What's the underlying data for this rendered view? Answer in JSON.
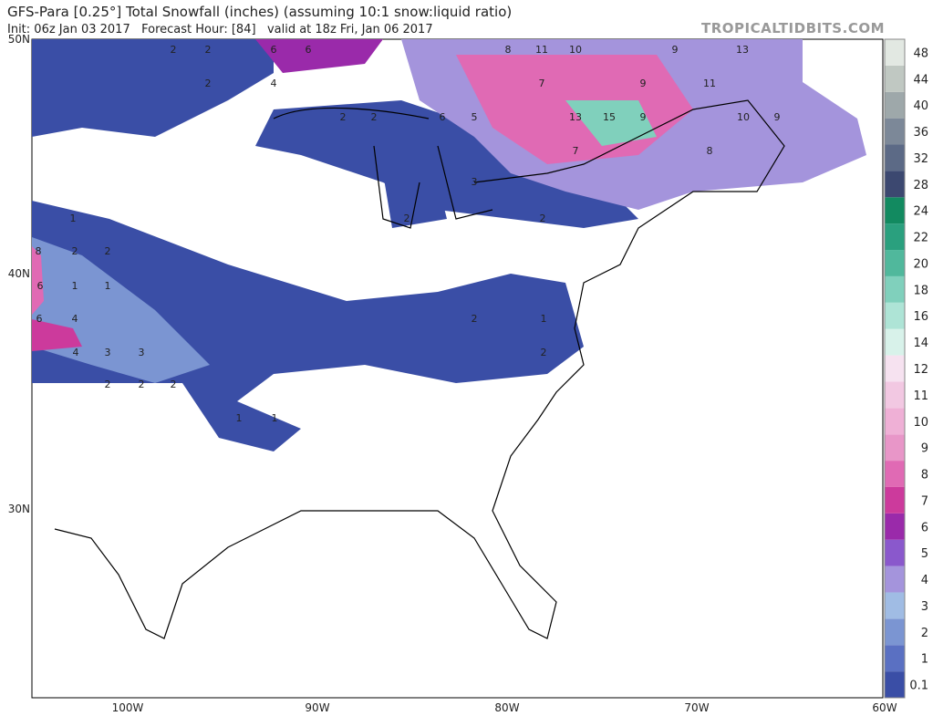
{
  "header": {
    "title": "GFS-Para [0.25°] Total Snowfall (inches) (assuming 10:1 snow:liquid ratio)",
    "subtitle": "Init: 06z Jan 03 2017   Forecast Hour: [84]   valid at 18z Fri, Jan 06 2017",
    "watermark": "TROPICALTIDBITS.COM"
  },
  "lat_labels": [
    "50N",
    "40N",
    "30N"
  ],
  "lon_labels": [
    "100W",
    "90W",
    "80W",
    "70W",
    "60W"
  ],
  "colorbar": {
    "ticks": [
      0.1,
      1,
      2,
      3,
      4,
      5,
      6,
      7,
      8,
      9,
      10,
      11,
      12,
      14,
      16,
      18,
      20,
      22,
      24,
      28,
      32,
      36,
      40,
      44,
      48
    ],
    "colors": [
      "#3a4ea6",
      "#5a70c2",
      "#7b95d2",
      "#a0bce4",
      "#a494dc",
      "#8a58cc",
      "#9a2aaa",
      "#cc3a9c",
      "#e06ab4",
      "#e896c8",
      "#efb0d6",
      "#f2c8e2",
      "#f6e2f0",
      "#d8f2ea",
      "#aee4d6",
      "#80d0bc",
      "#50b89c",
      "#2aa07e",
      "#128a60",
      "#3c4870",
      "#5c6a86",
      "#7c8898",
      "#9ea8aa",
      "#c0c8c2",
      "#e2e8e2"
    ]
  },
  "map_labels": [
    "2",
    "2",
    "6",
    "6",
    "8",
    "11",
    "10",
    "9",
    "13",
    "2",
    "4",
    "7",
    "9",
    "11",
    "2",
    "2",
    "6",
    "5",
    "13",
    "15",
    "9",
    "10",
    "9",
    "7",
    "8",
    "3",
    "2",
    "2",
    "8",
    "6",
    "2",
    "1",
    "1",
    "2",
    "1",
    "6",
    "4",
    "4",
    "3",
    "3",
    "2",
    "2",
    "2",
    "1",
    "1",
    "2",
    "1",
    "2"
  ]
}
